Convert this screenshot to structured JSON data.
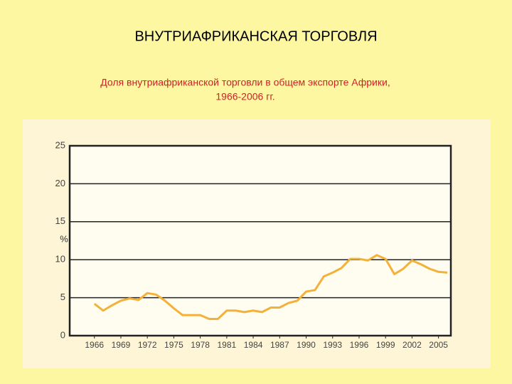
{
  "chart_data": {
    "type": "line",
    "title": "ВНУТРИАФРИКАНСКАЯ ТОРГОВЛЯ",
    "subtitle": [
      "Доля внутриафриканской торговли в общем экспорте Африки,",
      "1966-2006 гг."
    ],
    "y_label": "%",
    "x": [
      1966,
      1967,
      1968,
      1969,
      1970,
      1971,
      1972,
      1973,
      1974,
      1975,
      1976,
      1977,
      1978,
      1979,
      1980,
      1981,
      1982,
      1983,
      1984,
      1985,
      1986,
      1987,
      1988,
      1989,
      1990,
      1991,
      1992,
      1993,
      1994,
      1995,
      1996,
      1997,
      1998,
      1999,
      2000,
      2001,
      2002,
      2003,
      2004,
      2005,
      2006
    ],
    "series": [
      {
        "color": "#f4b13a",
        "values": [
          4.2,
          3.3,
          4.0,
          4.6,
          4.9,
          4.7,
          5.6,
          5.4,
          4.6,
          3.6,
          2.7,
          2.7,
          2.7,
          2.2,
          2.2,
          3.3,
          3.3,
          3.1,
          3.3,
          3.1,
          3.7,
          3.7,
          4.3,
          4.6,
          5.8,
          6.0,
          7.8,
          8.3,
          8.9,
          10.1,
          10.1,
          9.9,
          10.6,
          10.1,
          8.1,
          8.8,
          9.9,
          9.4,
          8.8,
          8.4,
          8.3
        ]
      }
    ],
    "xlim": [
      1963.2,
      2006.4
    ],
    "xticks": [
      1966,
      1969,
      1972,
      1975,
      1978,
      1981,
      1984,
      1987,
      1990,
      1993,
      1996,
      1999,
      2002,
      2005
    ],
    "ylim": [
      0,
      25
    ],
    "yticks": [
      0,
      5,
      10,
      15,
      20,
      25
    ],
    "grid": true
  }
}
